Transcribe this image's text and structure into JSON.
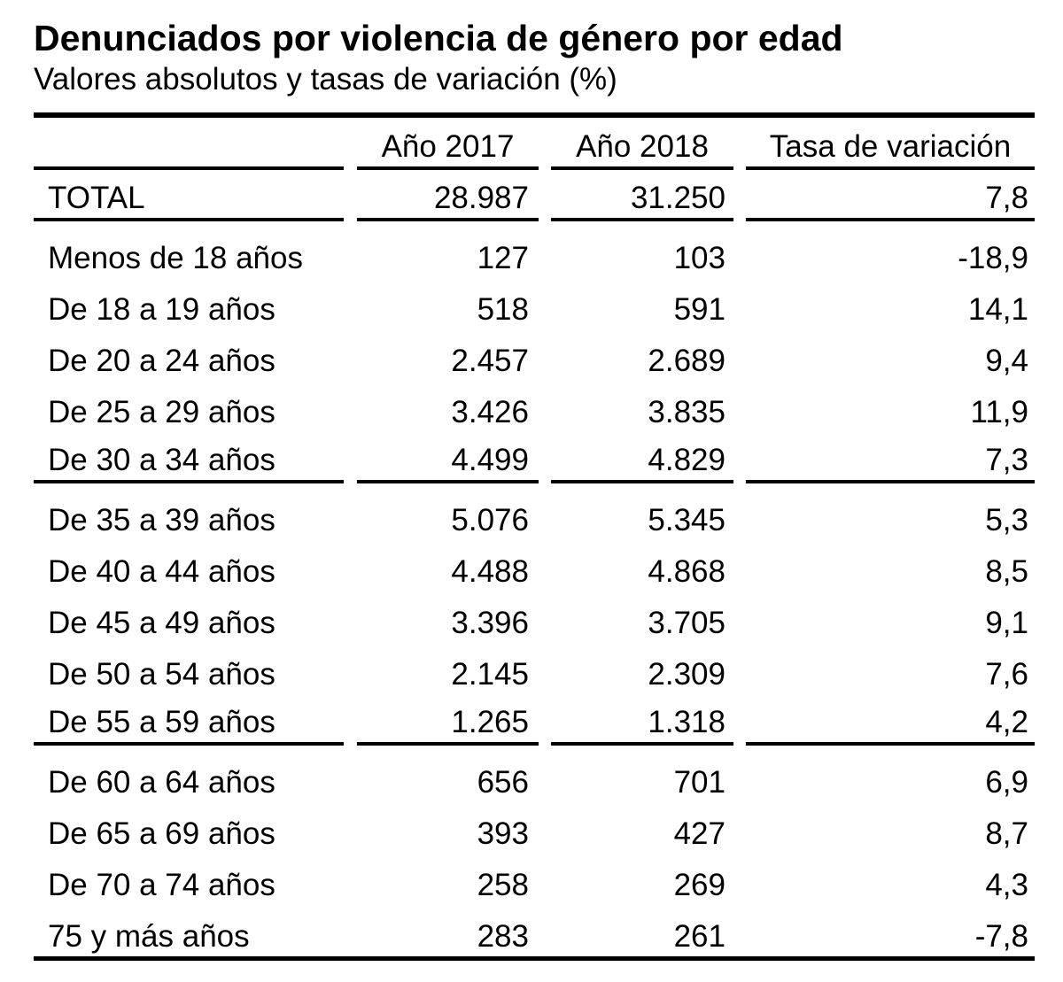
{
  "header": {
    "title": "Denunciados por violencia de género por edad",
    "subtitle": "Valores absolutos y tasas de variación (%)"
  },
  "chart_data": {
    "type": "table",
    "title": "Denunciados por violencia de género por edad",
    "subtitle": "Valores absolutos y tasas de variación (%)",
    "columns": [
      "",
      "Año 2017",
      "Año 2018",
      "Tasa de variación"
    ],
    "rows": [
      [
        "TOTAL",
        "28.987",
        "31.250",
        "7,8"
      ],
      [
        "Menos de 18 años",
        "127",
        "103",
        "-18,9"
      ],
      [
        "De 18 a 19 años",
        "518",
        "591",
        "14,1"
      ],
      [
        "De 20 a 24 años",
        "2.457",
        "2.689",
        "9,4"
      ],
      [
        "De 25 a 29 años",
        "3.426",
        "3.835",
        "11,9"
      ],
      [
        "De 30 a 34 años",
        "4.499",
        "4.829",
        "7,3"
      ],
      [
        "De 35 a 39 años",
        "5.076",
        "5.345",
        "5,3"
      ],
      [
        "De 40 a 44 años",
        "4.488",
        "4.868",
        "8,5"
      ],
      [
        "De 45 a 49 años",
        "3.396",
        "3.705",
        "9,1"
      ],
      [
        "De 50 a 54 años",
        "2.145",
        "2.309",
        "7,6"
      ],
      [
        "De 55 a 59 años",
        "1.265",
        "1.318",
        "4,2"
      ],
      [
        "De 60 a 64 años",
        "656",
        "701",
        "6,9"
      ],
      [
        "De 65 a 69 años",
        "393",
        "427",
        "8,7"
      ],
      [
        "De 70 a 74 años",
        "258",
        "269",
        "4,3"
      ],
      [
        "75 y más años",
        "283",
        "261",
        "-7,8"
      ]
    ],
    "layout": {
      "separators_after": [
        "TOTAL",
        "De 30 a 34 años",
        "De 55 a 59 años"
      ],
      "grid": "horizontal rules only",
      "value_alignment": "right"
    }
  },
  "colors": {
    "text": "#000000",
    "background": "#ffffff",
    "rules": "#000000"
  }
}
